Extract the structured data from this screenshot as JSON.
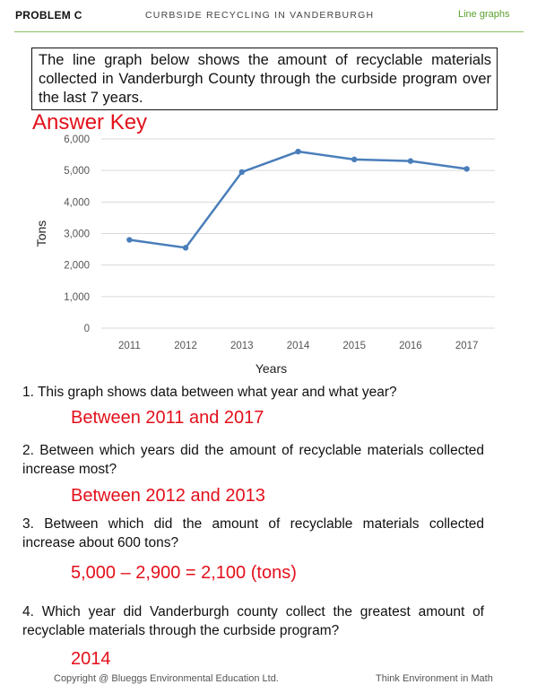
{
  "header": {
    "problem": "PROBLEM C",
    "title": "CURBSIDE RECYCLING IN VANDERBURGH",
    "tag": "Line graphs"
  },
  "intro": "The line graph below shows the amount of recyclable materials collected in Vanderburgh County through the curbside program over the last 7 years.",
  "answer_key_label": "Answer Key",
  "chart_data": {
    "type": "line",
    "categories": [
      "2011",
      "2012",
      "2013",
      "2014",
      "2015",
      "2016",
      "2017"
    ],
    "series": [
      {
        "values": [
          2800,
          2550,
          4950,
          5600,
          5350,
          5300,
          5050
        ]
      }
    ],
    "xlabel": "Years",
    "ylabel": "Tons",
    "ylim": [
      0,
      6000
    ],
    "yticks": [
      "0",
      "1,000",
      "2,000",
      "3,000",
      "4,000",
      "5,000",
      "6,000"
    ],
    "grid": true,
    "line_color": "#4a7eba",
    "grid_color": "#d9d9d9"
  },
  "questions": [
    {
      "text": "1. This graph shows data between what year and what year?",
      "answer": "Between 2011 and 2017"
    },
    {
      "text": "2. Between which years did the amount of recyclable materials collected increase most?",
      "answer": "Between 2012 and 2013"
    },
    {
      "text": "3. Between which did the amount of recyclable materials collected increase about 600 tons?",
      "answer": "5,000 – 2,900 = 2,100 (tons)"
    },
    {
      "text": "4. Which year did Vanderburgh county collect the greatest amount of recyclable materials through the curbside program?",
      "answer": "2014"
    }
  ],
  "footer": {
    "copyright": "Copyright @ Blueggs Environmental Education Ltd.",
    "series_name": "Think Environment in Math"
  },
  "colors": {
    "answer": "#e3101b",
    "accent_green": "#5aa02c"
  }
}
